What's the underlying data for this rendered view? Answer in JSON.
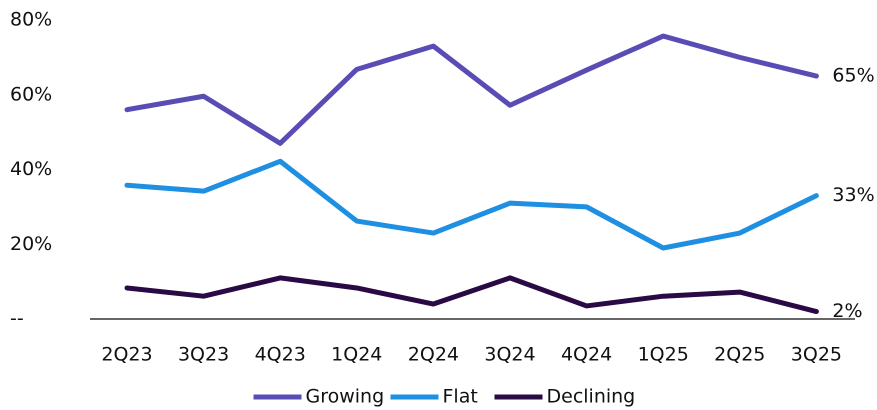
{
  "chart_data": {
    "type": "line",
    "categories": [
      "2Q23",
      "3Q23",
      "4Q23",
      "1Q24",
      "2Q24",
      "3Q24",
      "4Q24",
      "1Q25",
      "2Q25",
      "3Q25"
    ],
    "series": [
      {
        "name": "Growing",
        "color": "#5a4cb5",
        "values": [
          56,
          59.6,
          47,
          66.8,
          73,
          57.2,
          66.6,
          75.7,
          70,
          65
        ],
        "value_labels": [
          null,
          null,
          null,
          null,
          null,
          null,
          null,
          null,
          null,
          "65%"
        ]
      },
      {
        "name": "Flat",
        "color": "#1e8fe1",
        "values": [
          35.8,
          34.2,
          42.2,
          26.2,
          23,
          31,
          30,
          19,
          23,
          33
        ],
        "value_labels": [
          null,
          null,
          null,
          null,
          null,
          null,
          null,
          null,
          null,
          "33%"
        ]
      },
      {
        "name": "Declining",
        "color": "#2a0a44",
        "values": [
          8.3,
          6.1,
          11,
          8.3,
          4,
          11,
          3.5,
          6.1,
          7.2,
          2
        ],
        "value_labels": [
          null,
          null,
          null,
          null,
          null,
          null,
          null,
          null,
          null,
          "2%"
        ]
      }
    ],
    "ylim": [
      0,
      80
    ],
    "yticks": [
      {
        "value": 0,
        "label": "--"
      },
      {
        "value": 20,
        "label": "20%"
      },
      {
        "value": 40,
        "label": "40%"
      },
      {
        "value": 60,
        "label": "60%"
      },
      {
        "value": 80,
        "label": "80%"
      }
    ],
    "grid": false,
    "legend": "bottom"
  }
}
